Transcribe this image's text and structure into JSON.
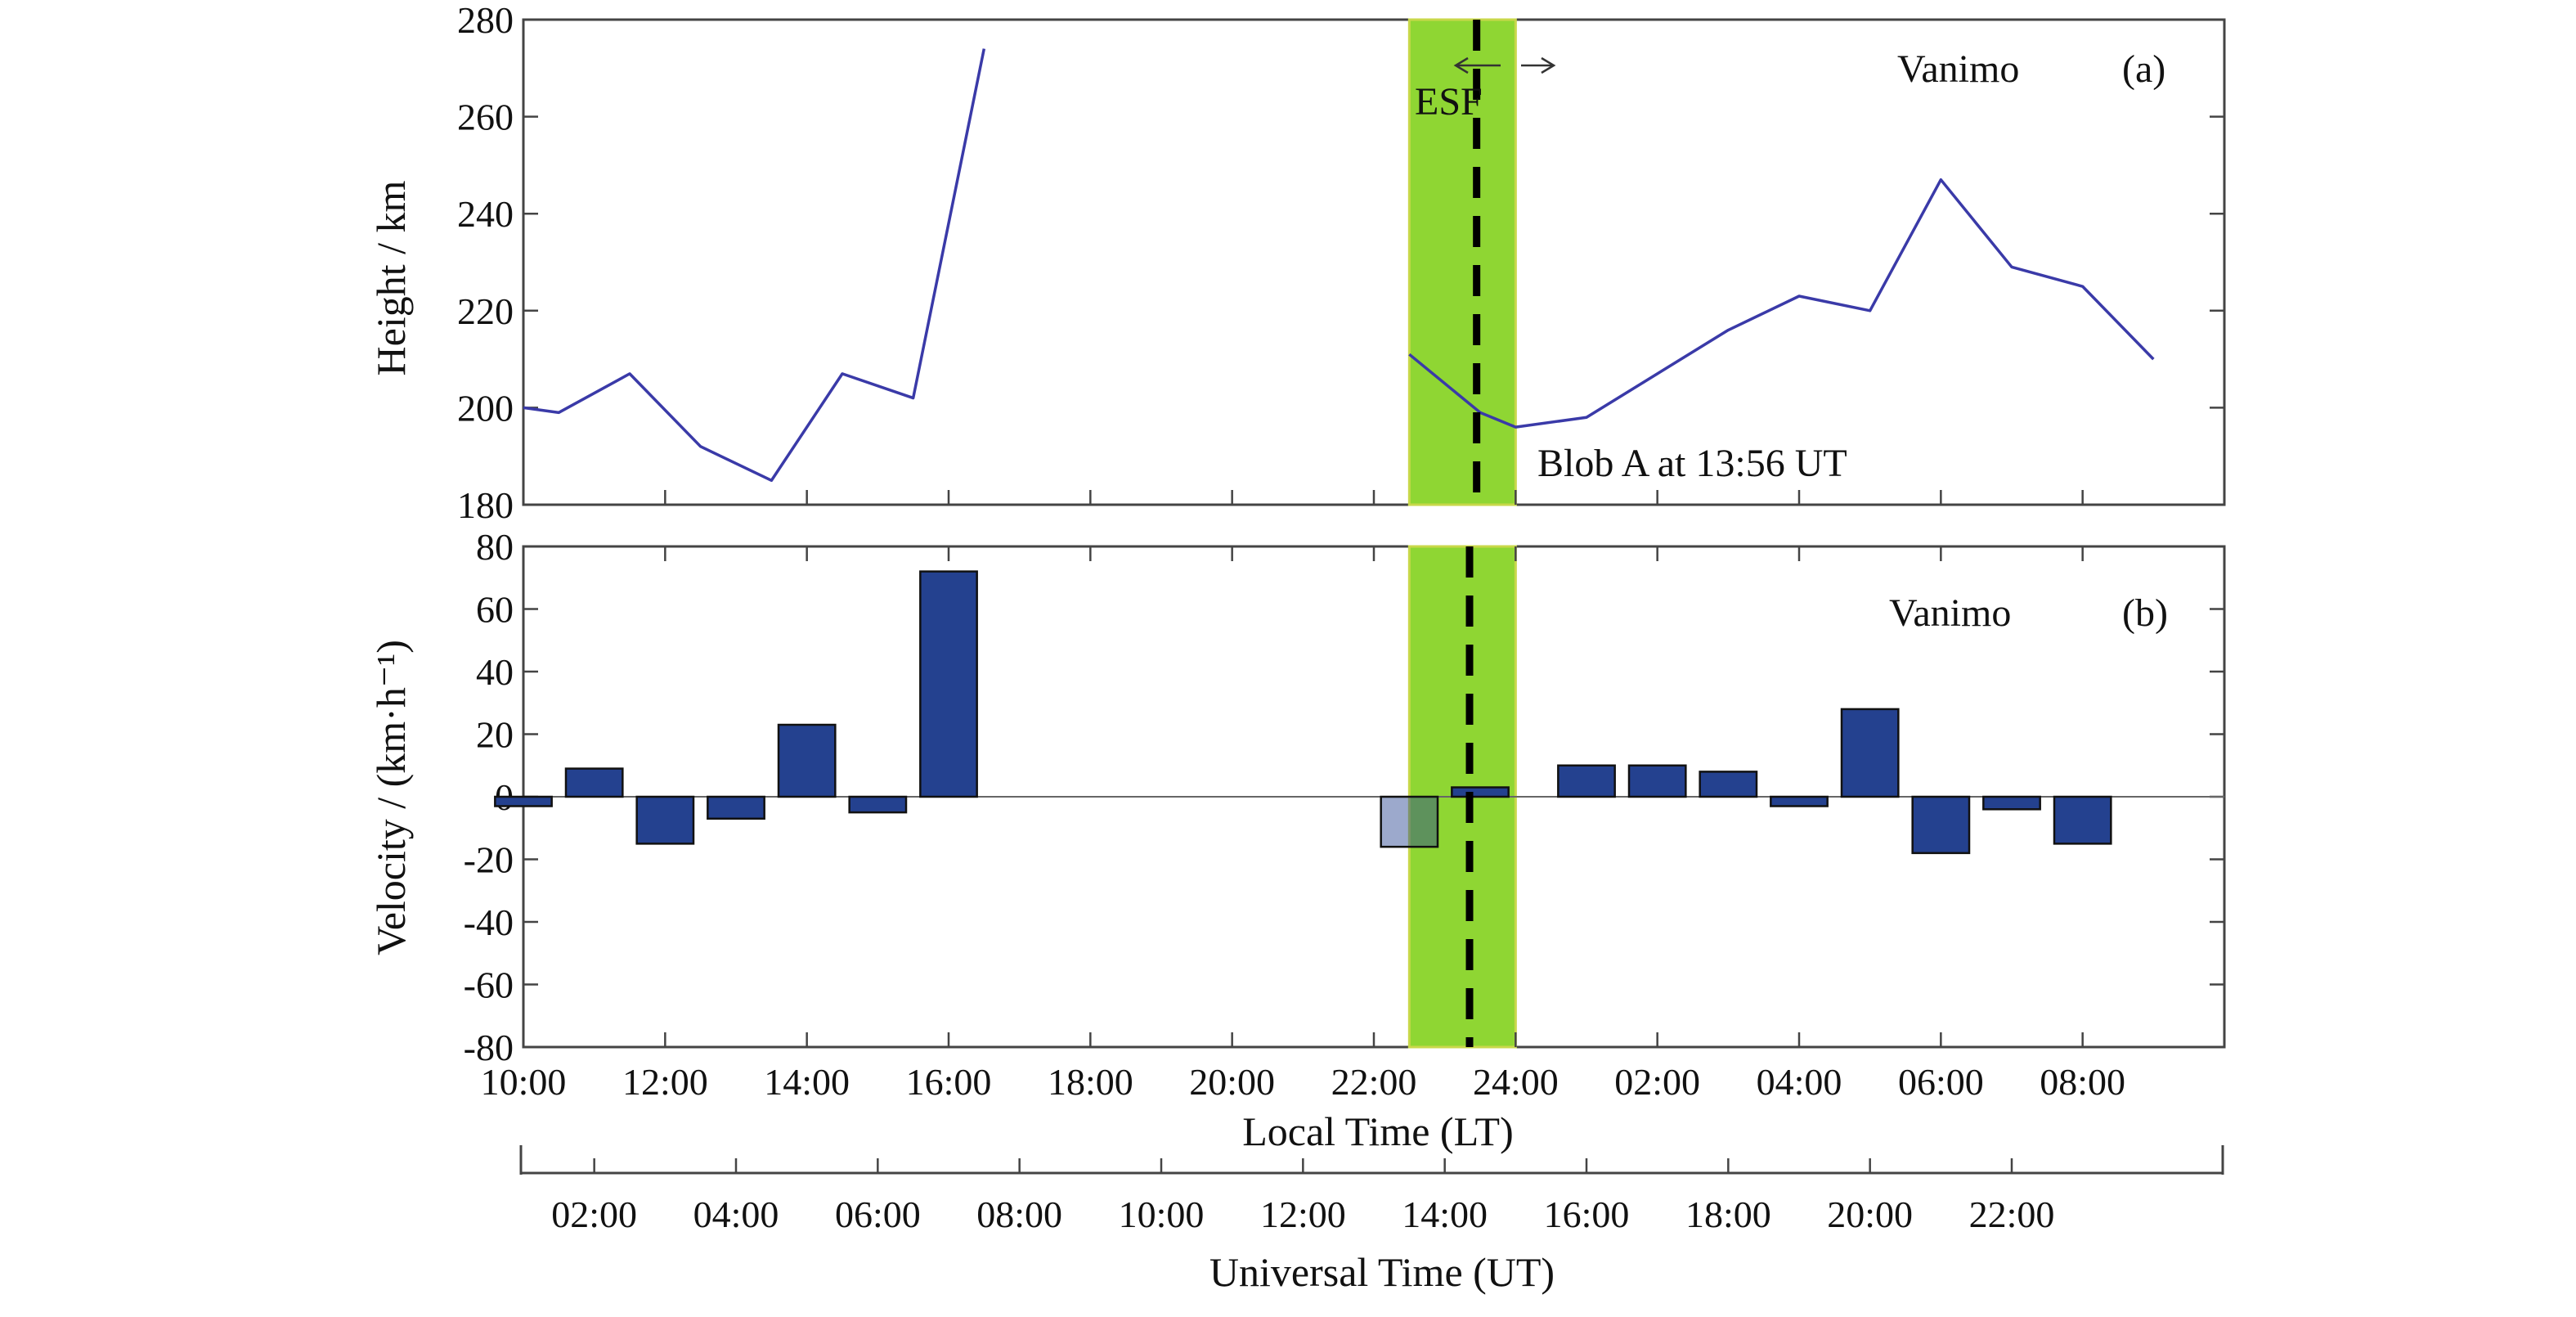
{
  "chart_data": [
    {
      "panel": "(a)",
      "type": "line",
      "station": "Vanimo",
      "ylabel": "Height / km",
      "ylim": [
        180,
        280
      ],
      "yticks": [
        180,
        200,
        220,
        240,
        260,
        280
      ],
      "xlim_local_hours": [
        10,
        33
      ],
      "series": [
        {
          "name": "",
          "segments": [
            {
              "x_local_hours": [
                10.0,
                10.5,
                11.5,
                12.5,
                13.5,
                14.5,
                15.5,
                16.5
              ],
              "y": [
                200,
                199,
                207,
                192,
                185,
                207,
                202,
                274
              ]
            },
            {
              "x_local_hours": [
                22.5,
                23.5,
                24.0,
                25.0,
                26.0,
                27.0,
                28.0,
                29.0,
                30.0,
                31.0,
                32.0,
                33.0
              ],
              "y": [
                211,
                199,
                196,
                198,
                207,
                216,
                223,
                220,
                247,
                229,
                225,
                210
              ]
            }
          ]
        }
      ],
      "shaded_region_local_hours": [
        22.5,
        24.0
      ],
      "event_line_local_hours": 23.45,
      "annotations": {
        "esf": "ESF",
        "blob": "Blob A at 13:56 UT"
      }
    },
    {
      "panel": "(b)",
      "type": "bar",
      "station": "Vanimo",
      "ylabel": "Velocity / (km·h⁻¹)",
      "ylim": [
        -80,
        80
      ],
      "yticks": [
        -80,
        -60,
        -40,
        -20,
        0,
        20,
        40,
        60,
        80
      ],
      "xlim_local_hours": [
        10,
        33
      ],
      "x_local_hours": [
        10.0,
        11.0,
        12.0,
        13.0,
        14.0,
        15.0,
        16.0,
        22.5,
        23.5,
        25.0,
        26.0,
        27.0,
        28.0,
        29.0,
        30.0,
        31.0,
        32.0,
        33.0
      ],
      "values": [
        -3,
        9,
        -15,
        -7,
        23,
        -5,
        72,
        -16,
        3,
        10,
        10,
        8,
        -3,
        28,
        -18,
        -4,
        -15,
        0
      ],
      "shaded_region_local_hours": [
        22.5,
        24.0
      ],
      "event_line_local_hours": 23.35,
      "x_ticks_local": [
        "10:00",
        "12:00",
        "14:00",
        "16:00",
        "18:00",
        "20:00",
        "22:00",
        "24:00",
        "02:00",
        "04:00",
        "06:00",
        "08:00"
      ],
      "x_ticks_ut": [
        "02:00",
        "04:00",
        "06:00",
        "08:00",
        "10:00",
        "12:00",
        "14:00",
        "16:00",
        "18:00",
        "20:00",
        "22:00"
      ],
      "xlabel_local": "Local Time (LT)",
      "xlabel_ut": "Universal Time (UT)"
    }
  ],
  "colors": {
    "line": "#3a3aa8",
    "bar": "#24418f",
    "shade": "#8fd633",
    "shade_edge": "#c8d84a",
    "dashed": "#000000"
  }
}
